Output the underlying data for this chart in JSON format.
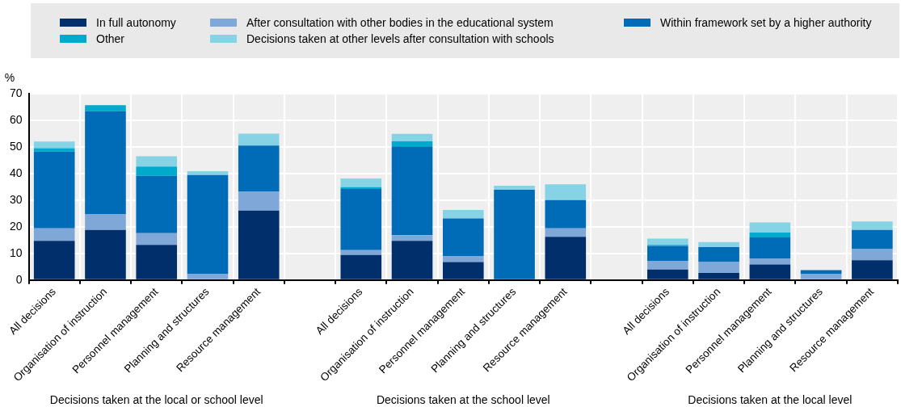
{
  "chart_data": {
    "type": "bar",
    "stacked": true,
    "ylabel": "%",
    "categories": [
      "All decisions",
      "Organisation of instruction",
      "Personnel management",
      "Planning and structures",
      "Resource management",
      null,
      "All decisions",
      "Organisation of instruction",
      "Personnel management",
      "Planning and structures",
      "Resource management",
      null,
      "All decisions",
      "Organisation of instruction",
      "Personnel management",
      "Planning and structures",
      "Resource management"
    ],
    "series": [
      {
        "name": "In full autonomy",
        "color": "#002f6c",
        "values": [
          14.7,
          18.8,
          13.2,
          0,
          26.1,
          null,
          9.4,
          14.7,
          6.7,
          0,
          16.2,
          null,
          3.9,
          2.6,
          5.8,
          0,
          7.4
        ]
      },
      {
        "name": "After consultation with other bodies in the educational system",
        "color": "#7fa8d9",
        "values": [
          4.7,
          5.8,
          4.4,
          2.2,
          7.0,
          null,
          1.8,
          2.1,
          2.3,
          0,
          3.2,
          null,
          3.3,
          4.1,
          2.3,
          2.2,
          4.2
        ]
      },
      {
        "name": "Within framework set by a higher authority",
        "color": "#006bb6",
        "values": [
          28.8,
          38.9,
          21.5,
          37.2,
          17.4,
          null,
          23.0,
          33.4,
          14.1,
          33.9,
          10.6,
          null,
          5.6,
          5.6,
          7.9,
          1.5,
          7.2
        ]
      },
      {
        "name": "Other",
        "color": "#00aacc",
        "values": [
          1.3,
          2.2,
          3.5,
          0,
          0,
          null,
          0.7,
          1.9,
          0,
          0,
          0,
          null,
          0.4,
          0,
          1.8,
          0,
          0
        ]
      },
      {
        "name": "Decisions taken at other levels after consultation with schools",
        "color": "#86d3e6",
        "values": [
          2.5,
          0,
          3.9,
          1.5,
          4.5,
          null,
          3.2,
          2.8,
          3.2,
          1.5,
          5.9,
          null,
          2.3,
          1.9,
          3.8,
          0,
          3.2
        ]
      }
    ],
    "ylim": [
      0,
      70
    ],
    "yticks": [
      0,
      10,
      20,
      30,
      40,
      50,
      60,
      70
    ],
    "grid": true,
    "legend": "top",
    "annotations": [
      "Decisions taken at the local or school level",
      "Decisions taken at the school level",
      "Decisions taken at the local level"
    ]
  }
}
